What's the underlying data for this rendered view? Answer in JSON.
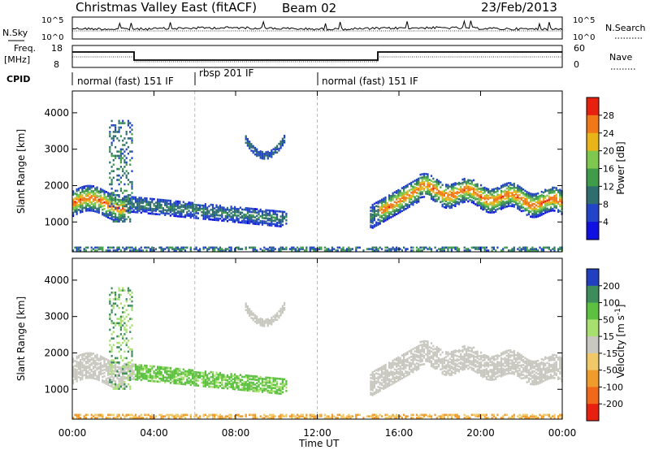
{
  "header": {
    "title": "Christmas Valley East (fitACF)",
    "beam": "Beam 02",
    "date": "23/Feb/2013"
  },
  "panels": {
    "nsky_label": "N.Sky",
    "nsearch_label": "N.Search",
    "nsky_ticks": [
      "10^5",
      "10^0"
    ],
    "freq_label": [
      "Freq.",
      "[MHz]"
    ],
    "freq_ticks": [
      "18",
      "8"
    ],
    "nave_label": "Nave",
    "nave_ticks": [
      "60",
      "0"
    ],
    "cpid_label": "CPID",
    "cpid_segments": [
      {
        "label": "normal (fast) 151 IF",
        "start": 0,
        "end": 6
      },
      {
        "label": "rbsp 201 IF",
        "start": 6,
        "end": 12
      },
      {
        "label": "normal (fast) 151 IF",
        "start": 12,
        "end": 24
      }
    ]
  },
  "chart_data": [
    {
      "type": "heatmap",
      "title": "",
      "xlabel": "Time UT",
      "ylabel": "Slant Range [km]",
      "xlim": [
        0,
        24
      ],
      "ylim": [
        180,
        4600
      ],
      "xticks": [
        "00:00",
        "04:00",
        "08:00",
        "12:00",
        "16:00",
        "20:00",
        "00:00"
      ],
      "yticks": [
        "1000",
        "2000",
        "3000",
        "4000"
      ],
      "colorbar": {
        "label": "Power [dB]",
        "ticks": [
          "4",
          "8",
          "12",
          "16",
          "20",
          "24",
          "28"
        ],
        "colors": [
          "#1010e0",
          "#2244c8",
          "#2e6e6e",
          "#3f9c48",
          "#7ec850",
          "#e8b418",
          "#f07818",
          "#e82010"
        ]
      },
      "regions": [
        {
          "name": "early band",
          "t": [
            0.0,
            2.5
          ],
          "range": [
            1200,
            2100
          ],
          "power": 26
        },
        {
          "name": "descending echo",
          "t": [
            1.5,
            10.5
          ],
          "range": [
            1000,
            1600
          ],
          "power": 10
        },
        {
          "name": "patch near 09:00",
          "t": [
            8.4,
            10.4
          ],
          "range": [
            2600,
            3400
          ],
          "power": 8
        },
        {
          "name": "late band",
          "t": [
            14.5,
            24.0
          ],
          "range": [
            1100,
            2200
          ],
          "power": 26
        }
      ]
    },
    {
      "type": "heatmap",
      "title": "",
      "xlabel": "Time UT",
      "ylabel": "Slant Range [km]",
      "xlim": [
        0,
        24
      ],
      "ylim": [
        180,
        4600
      ],
      "xticks": [
        "00:00",
        "04:00",
        "08:00",
        "12:00",
        "16:00",
        "20:00",
        "00:00"
      ],
      "yticks": [
        "1000",
        "2000",
        "3000",
        "4000"
      ],
      "colorbar": {
        "label": "Velocity [m s^-1]",
        "ticks": [
          "200",
          "100",
          "50",
          "15",
          "-15",
          "-50",
          "-100",
          "-200"
        ],
        "colors": [
          "#2040c0",
          "#3c8c5c",
          "#5cc040",
          "#a8e070",
          "#c8c8c0",
          "#f0c868",
          "#f09c2c",
          "#f06818",
          "#e82010"
        ]
      },
      "regions": [
        {
          "name": "ground scatter early",
          "t": [
            0.0,
            3.0
          ],
          "range": [
            1200,
            2100
          ],
          "velocity": 0
        },
        {
          "name": "ionospheric echo",
          "t": [
            3.0,
            10.5
          ],
          "range": [
            1000,
            1400
          ],
          "velocity": 60
        },
        {
          "name": "ground scatter late",
          "t": [
            15.5,
            24.0
          ],
          "range": [
            1100,
            2300
          ],
          "velocity": 0
        }
      ]
    }
  ]
}
